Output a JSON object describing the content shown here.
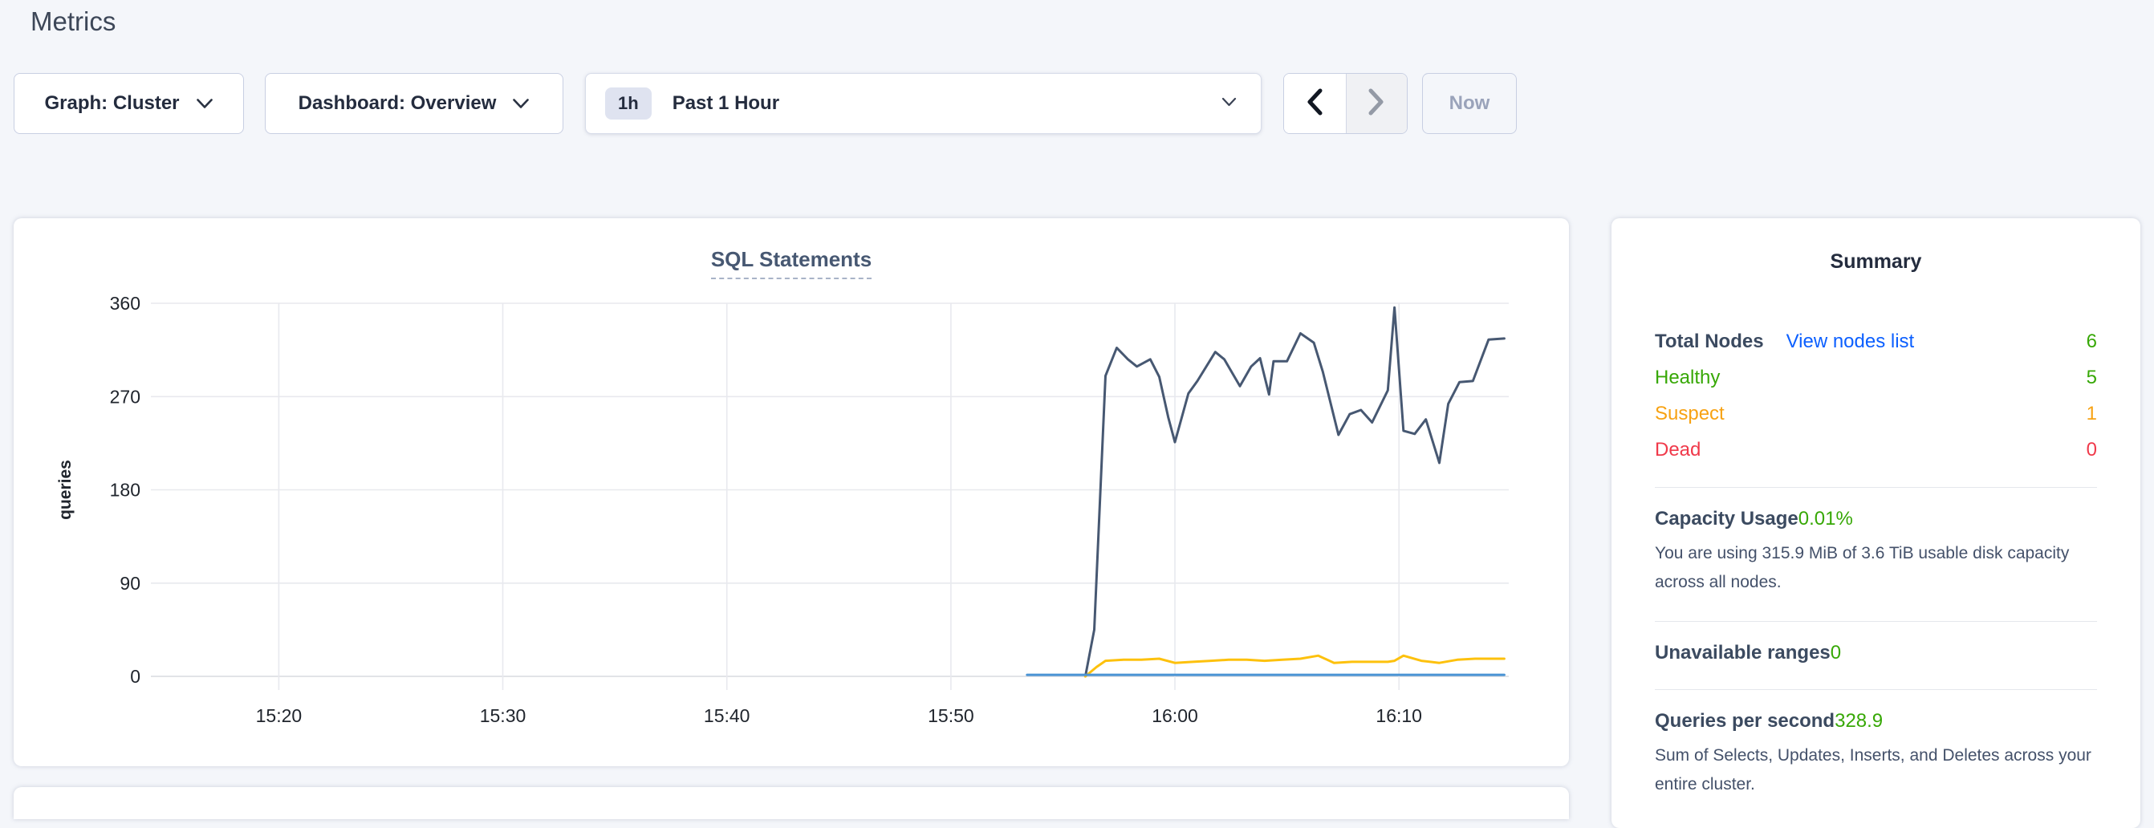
{
  "page": {
    "title": "Metrics"
  },
  "colors": {
    "page-bg": "#f4f6fa",
    "green": "#37a806",
    "orange": "#f7a213",
    "red": "#f0394a",
    "link": "#0b5fff",
    "dark-text": "#242c3e"
  },
  "toolbar": {
    "graph": {
      "label": "Graph: Cluster"
    },
    "dashboard": {
      "label": "Dashboard: Overview"
    },
    "time_range": {
      "badge": "1h",
      "label": "Past 1 Hour"
    },
    "now_label": "Now",
    "icons": {
      "dropdown": "chevron-down",
      "previous": "chevron-left",
      "next": "chevron-right"
    }
  },
  "chart_data": {
    "type": "line",
    "title": "SQL Statements",
    "ylabel": "queries",
    "ylim": [
      0,
      360
    ],
    "yticks": [
      0,
      90,
      180,
      270,
      360
    ],
    "x_unit": "minutes into 1-hour window",
    "xlim_minutes": [
      0,
      60
    ],
    "xticks": [
      {
        "m": 5.1,
        "label": "15:20"
      },
      {
        "m": 15.1,
        "label": "15:30"
      },
      {
        "m": 25.1,
        "label": "15:40"
      },
      {
        "m": 35.1,
        "label": "15:50"
      },
      {
        "m": 45.1,
        "label": "16:00"
      },
      {
        "m": 55.1,
        "label": "16:10"
      }
    ],
    "grid": {
      "show": true,
      "color": "#e8e9ee",
      "zero_color": "#d9dadf"
    },
    "legend": "none",
    "series": [
      {
        "name": "line-1-dark-slate",
        "color": "#475872",
        "points": [
          [
            41.1,
            0
          ],
          [
            41.5,
            45
          ],
          [
            42.0,
            290
          ],
          [
            42.5,
            317
          ],
          [
            43.0,
            306
          ],
          [
            43.4,
            299
          ],
          [
            44.0,
            306
          ],
          [
            44.4,
            289
          ],
          [
            44.8,
            250
          ],
          [
            45.1,
            226
          ],
          [
            45.7,
            273
          ],
          [
            46.1,
            285
          ],
          [
            46.9,
            313
          ],
          [
            47.3,
            306
          ],
          [
            48.0,
            280
          ],
          [
            48.5,
            299
          ],
          [
            48.9,
            307
          ],
          [
            49.3,
            272
          ],
          [
            49.5,
            304
          ],
          [
            50.1,
            304
          ],
          [
            50.7,
            331
          ],
          [
            51.3,
            322
          ],
          [
            51.7,
            294
          ],
          [
            52.4,
            233
          ],
          [
            52.9,
            253
          ],
          [
            53.4,
            257
          ],
          [
            53.9,
            245
          ],
          [
            54.6,
            276
          ],
          [
            54.9,
            356
          ],
          [
            55.3,
            237
          ],
          [
            55.8,
            234
          ],
          [
            56.3,
            248
          ],
          [
            56.9,
            206
          ],
          [
            57.3,
            263
          ],
          [
            57.8,
            284
          ],
          [
            58.4,
            285
          ],
          [
            59.1,
            325
          ],
          [
            59.8,
            326
          ]
        ]
      },
      {
        "name": "line-2-yellow",
        "color": "#fdc10d",
        "points": [
          [
            41.1,
            0
          ],
          [
            41.6,
            9
          ],
          [
            42.0,
            15
          ],
          [
            42.8,
            16
          ],
          [
            43.6,
            16
          ],
          [
            44.4,
            17
          ],
          [
            45.1,
            13
          ],
          [
            45.9,
            14
          ],
          [
            46.7,
            15
          ],
          [
            47.5,
            16
          ],
          [
            48.3,
            16
          ],
          [
            49.1,
            15
          ],
          [
            49.9,
            16
          ],
          [
            50.7,
            17
          ],
          [
            51.5,
            20
          ],
          [
            52.2,
            13
          ],
          [
            53.0,
            14
          ],
          [
            53.8,
            14
          ],
          [
            54.6,
            14
          ],
          [
            54.9,
            15
          ],
          [
            55.3,
            20
          ],
          [
            56.1,
            15
          ],
          [
            56.9,
            13
          ],
          [
            57.7,
            16
          ],
          [
            58.5,
            17
          ],
          [
            59.3,
            17
          ],
          [
            59.8,
            17
          ]
        ]
      },
      {
        "name": "line-3-blue",
        "color": "#4a94d4",
        "points": [
          [
            38.5,
            1.5
          ],
          [
            59.8,
            1.5
          ]
        ]
      }
    ]
  },
  "summary": {
    "title": "Summary",
    "total_nodes": {
      "label": "Total Nodes",
      "link_label": "View nodes list",
      "value": "6"
    },
    "node_statuses": [
      {
        "label": "Healthy",
        "value": "5",
        "color": "#37a806"
      },
      {
        "label": "Suspect",
        "value": "1",
        "color": "#f7a213"
      },
      {
        "label": "Dead",
        "value": "0",
        "color": "#f0394a"
      }
    ],
    "stats": [
      {
        "label": "Capacity Usage",
        "value": "0.01%",
        "description": "You are using 315.9 MiB of 3.6 TiB usable disk capacity across all nodes."
      },
      {
        "label": "Unavailable ranges",
        "value": "0",
        "description": ""
      },
      {
        "label": "Queries per second",
        "value": "328.9",
        "description": "Sum of Selects, Updates, Inserts, and Deletes across your entire cluster."
      }
    ]
  }
}
